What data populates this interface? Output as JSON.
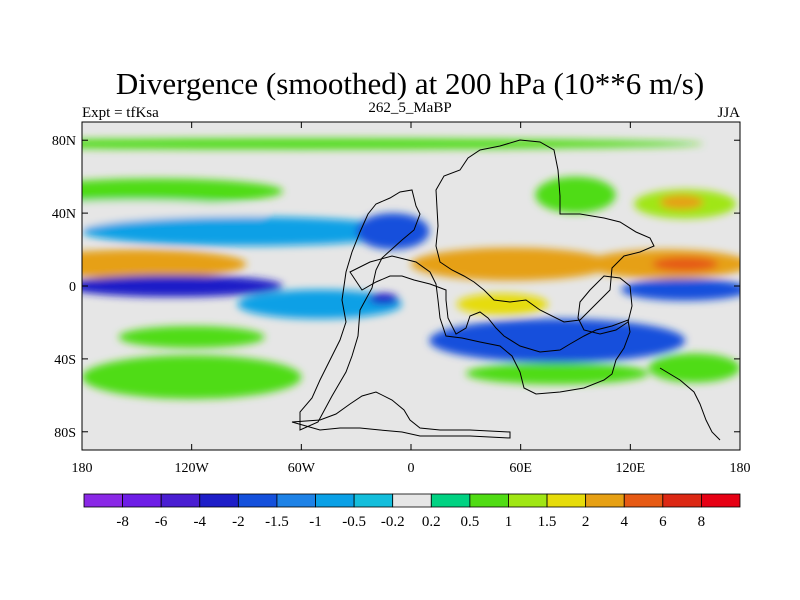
{
  "chart_data": {
    "type": "heatmap",
    "title": "Divergence (smoothed) at 200 hPa (10**6 m/s)",
    "subtitle_left": "Expt = tfKsa",
    "subtitle_center": "262_5_MaBP",
    "subtitle_right": "JJA",
    "x_ticks": [
      {
        "value": -180,
        "label": "180"
      },
      {
        "value": -120,
        "label": "120W"
      },
      {
        "value": -60,
        "label": "60W"
      },
      {
        "value": 0,
        "label": "0"
      },
      {
        "value": 60,
        "label": "60E"
      },
      {
        "value": 120,
        "label": "120E"
      },
      {
        "value": 180,
        "label": "180"
      }
    ],
    "y_ticks": [
      {
        "value": 80,
        "label": "80N"
      },
      {
        "value": 40,
        "label": "40N"
      },
      {
        "value": 0,
        "label": "0"
      },
      {
        "value": -40,
        "label": "40S"
      },
      {
        "value": -80,
        "label": "80S"
      }
    ],
    "xlim": [
      -180,
      180
    ],
    "ylim": [
      -90,
      90
    ],
    "colorbar": {
      "levels": [
        -8,
        -6,
        -4,
        -2,
        -1.5,
        -1,
        -0.5,
        -0.2,
        0.2,
        0.5,
        1,
        1.5,
        2,
        4,
        6,
        8
      ],
      "labels": [
        "-8",
        "-6",
        "-4",
        "-2",
        "-1.5",
        "-1",
        "-0.5",
        "-0.2",
        "0.2",
        "0.5",
        "1",
        "1.5",
        "2",
        "4",
        "6",
        "8"
      ],
      "colors": [
        "#8a28e6",
        "#6e1ee6",
        "#4a1ed2",
        "#1e1ec8",
        "#1450dc",
        "#1e82e6",
        "#0aa0e6",
        "#14bedc",
        "#e6e6e6",
        "#00d282",
        "#50dc14",
        "#a0e614",
        "#e6dc0a",
        "#e6a014",
        "#e65a14",
        "#dc2814",
        "#e60014"
      ]
    },
    "regions": [
      {
        "name": "north-polar-band",
        "lon": -60,
        "lat": 78,
        "w": 220,
        "h": 3,
        "level": 0.5
      },
      {
        "name": "north-green-band",
        "lon": -140,
        "lat": 52,
        "w": 70,
        "h": 7,
        "level": 0.5
      },
      {
        "name": "north-cyan-band",
        "lon": -150,
        "lat": 40,
        "w": 70,
        "h": 7,
        "level": -0.2
      },
      {
        "name": "north-blue-band",
        "lon": -90,
        "lat": 30,
        "w": 90,
        "h": 8,
        "level": -1
      },
      {
        "name": "asia-strong-conv",
        "lon": -10,
        "lat": 30,
        "w": 20,
        "h": 10,
        "level": -2
      },
      {
        "name": "tibet-green",
        "lon": 90,
        "lat": 50,
        "w": 22,
        "h": 10,
        "level": 0.5
      },
      {
        "name": "pacific-n-green",
        "lon": 150,
        "lat": 45,
        "w": 28,
        "h": 8,
        "level": 1
      },
      {
        "name": "pacific-n-yellow",
        "lon": 148,
        "lat": 46,
        "w": 12,
        "h": 4,
        "level": 2
      },
      {
        "name": "trop-n-orange-west",
        "lon": -150,
        "lat": 12,
        "w": 60,
        "h": 8,
        "level": 2
      },
      {
        "name": "trop-n-orange-africa",
        "lon": 55,
        "lat": 12,
        "w": 55,
        "h": 9,
        "level": 2
      },
      {
        "name": "trop-n-orange-pacific",
        "lon": 140,
        "lat": 12,
        "w": 45,
        "h": 8,
        "level": 2
      },
      {
        "name": "trop-n-red-pacific",
        "lon": 150,
        "lat": 12,
        "w": 18,
        "h": 4,
        "level": 4
      },
      {
        "name": "equator-blue",
        "lon": -130,
        "lat": 0,
        "w": 60,
        "h": 6,
        "level": -4
      },
      {
        "name": "equator-blue-east",
        "lon": 150,
        "lat": -2,
        "w": 35,
        "h": 6,
        "level": -2
      },
      {
        "name": "trop-s-green-amer",
        "lon": -120,
        "lat": -28,
        "w": 40,
        "h": 6,
        "level": 0.5
      },
      {
        "name": "trop-s-blue",
        "lon": -50,
        "lat": -10,
        "w": 45,
        "h": 8,
        "level": -1
      },
      {
        "name": "trop-s-purple",
        "lon": -15,
        "lat": -7,
        "w": 8,
        "h": 3,
        "level": -4
      },
      {
        "name": "south-strong-conv",
        "lon": 80,
        "lat": -30,
        "w": 70,
        "h": 12,
        "level": -2
      },
      {
        "name": "south-orange-africa",
        "lon": 50,
        "lat": -10,
        "w": 25,
        "h": 6,
        "level": 1.5
      },
      {
        "name": "south-green-east",
        "lon": 155,
        "lat": -45,
        "w": 25,
        "h": 8,
        "level": 0.5
      },
      {
        "name": "south-green-amer",
        "lon": -120,
        "lat": -50,
        "w": 60,
        "h": 12,
        "level": 0.5
      },
      {
        "name": "south-green-atl",
        "lon": 80,
        "lat": -48,
        "w": 50,
        "h": 6,
        "level": 0.5
      }
    ]
  }
}
